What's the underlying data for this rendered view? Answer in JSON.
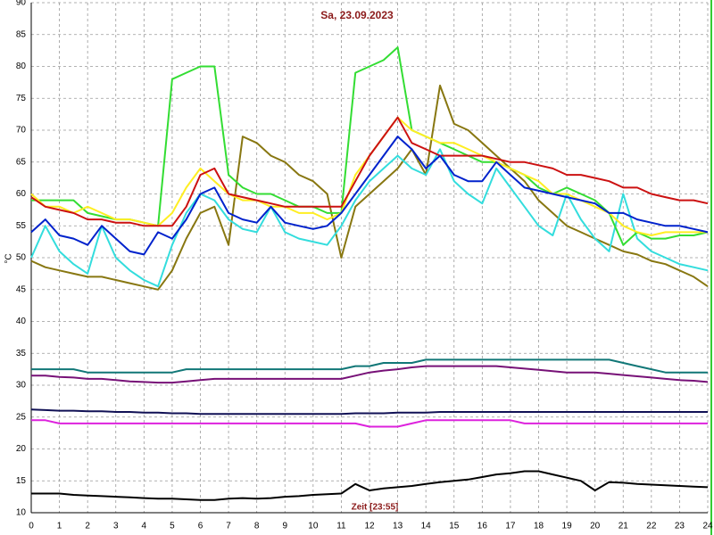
{
  "chart_data": {
    "type": "line",
    "title": "Sa, 23.09.2023",
    "x_label": "Zeit [23:55]",
    "y_label": "°C",
    "x": [
      0,
      0.5,
      1,
      1.5,
      2,
      2.5,
      3,
      3.5,
      4,
      4.5,
      5,
      5.5,
      6,
      6.5,
      7,
      7.5,
      8,
      8.5,
      9,
      9.5,
      10,
      10.5,
      11,
      11.5,
      12,
      12.5,
      13,
      13.5,
      14,
      14.5,
      15,
      15.5,
      16,
      16.5,
      17,
      17.5,
      18,
      18.5,
      19,
      19.5,
      20,
      20.5,
      21,
      21.5,
      22,
      22.5,
      23,
      23.5,
      24
    ],
    "xlim": [
      0,
      24
    ],
    "ylim": [
      10,
      90
    ],
    "xticks": [
      0,
      1,
      2,
      3,
      4,
      5,
      6,
      7,
      8,
      9,
      10,
      11,
      12,
      13,
      14,
      15,
      16,
      17,
      18,
      19,
      20,
      21,
      22,
      23,
      24
    ],
    "yticks": [
      10,
      15,
      20,
      25,
      30,
      35,
      40,
      45,
      50,
      55,
      60,
      65,
      70,
      75,
      80,
      85,
      90
    ],
    "grid": true,
    "series": [
      {
        "color": "#000000",
        "values": [
          13,
          13,
          13,
          12.8,
          12.7,
          12.6,
          12.5,
          12.4,
          12.3,
          12.2,
          12.2,
          12.1,
          12,
          12,
          12.2,
          12.3,
          12.2,
          12.3,
          12.5,
          12.6,
          12.8,
          12.9,
          13,
          14.5,
          13.5,
          13.8,
          14,
          14.2,
          14.5,
          14.8,
          15,
          15.2,
          15.6,
          16,
          16.2,
          16.5,
          16.5,
          16,
          15.5,
          15,
          13.5,
          14.8,
          14.7,
          14.5,
          14.4,
          14.3,
          14.2,
          14.1,
          14
        ]
      },
      {
        "color": "#dd22dd",
        "values": [
          24.5,
          24.5,
          24,
          24,
          24,
          24,
          24,
          24,
          24,
          24,
          24,
          24,
          24,
          24,
          24,
          24,
          24,
          24,
          24,
          24,
          24,
          24,
          24,
          24,
          23.5,
          23.5,
          23.5,
          24,
          24.5,
          24.5,
          24.5,
          24.5,
          24.5,
          24.5,
          24.5,
          24,
          24,
          24,
          24,
          24,
          24,
          24,
          24,
          24,
          24,
          24,
          24,
          24,
          24
        ]
      },
      {
        "color": "#111155",
        "values": [
          26.2,
          26.1,
          26,
          26,
          25.9,
          25.9,
          25.8,
          25.8,
          25.7,
          25.7,
          25.6,
          25.6,
          25.5,
          25.5,
          25.5,
          25.5,
          25.5,
          25.5,
          25.5,
          25.5,
          25.5,
          25.5,
          25.5,
          25.6,
          25.6,
          25.6,
          25.7,
          25.7,
          25.7,
          25.8,
          25.8,
          25.8,
          25.8,
          25.8,
          25.8,
          25.8,
          25.8,
          25.8,
          25.8,
          25.8,
          25.8,
          25.8,
          25.8,
          25.8,
          25.8,
          25.8,
          25.8,
          25.8,
          25.8
        ]
      },
      {
        "color": "#771177",
        "values": [
          31.5,
          31.5,
          31.3,
          31.2,
          31,
          31,
          30.8,
          30.6,
          30.5,
          30.4,
          30.4,
          30.6,
          30.8,
          31,
          31,
          31,
          31,
          31,
          31,
          31,
          31,
          31,
          31,
          31.5,
          32,
          32.3,
          32.5,
          32.8,
          33,
          33,
          33,
          33,
          33,
          33,
          32.8,
          32.6,
          32.4,
          32.2,
          32,
          32,
          32,
          31.8,
          31.6,
          31.4,
          31.2,
          31,
          30.8,
          30.7,
          30.5
        ]
      },
      {
        "color": "#117777",
        "values": [
          32.5,
          32.5,
          32.5,
          32.5,
          32,
          32,
          32,
          32,
          32,
          32,
          32,
          32.5,
          32.5,
          32.5,
          32.5,
          32.5,
          32.5,
          32.5,
          32.5,
          32.5,
          32.5,
          32.5,
          32.5,
          33,
          33,
          33.5,
          33.5,
          33.5,
          34,
          34,
          34,
          34,
          34,
          34,
          34,
          34,
          34,
          34,
          34,
          34,
          34,
          34,
          33.5,
          33,
          32.5,
          32,
          32,
          32,
          32
        ]
      },
      {
        "color": "#887711",
        "values": [
          49.5,
          48.5,
          48,
          47.5,
          47,
          47,
          46.5,
          46,
          45.5,
          45,
          48,
          53,
          57,
          58,
          52,
          69,
          68,
          66,
          65,
          63,
          62,
          60,
          50,
          58,
          60,
          62,
          64,
          67,
          63,
          77,
          71,
          70,
          68,
          66,
          64,
          62,
          59,
          57,
          55,
          54,
          53,
          52,
          51,
          50.5,
          49.5,
          49,
          48,
          47,
          45.5
        ]
      },
      {
        "color": "#33dddd",
        "values": [
          50,
          55,
          51,
          49,
          47.5,
          55,
          50,
          48,
          46.5,
          45.5,
          52,
          57,
          60,
          59,
          56,
          54.5,
          54,
          58,
          54,
          53,
          52.5,
          52,
          55,
          59,
          62,
          64,
          66,
          64,
          63,
          67,
          62,
          60,
          58.5,
          64,
          61,
          58,
          55,
          53.5,
          60,
          56,
          53,
          51,
          60,
          53,
          51,
          50,
          49,
          48.5,
          48
        ]
      },
      {
        "color": "#33dd33",
        "values": [
          59,
          59,
          59,
          59,
          57,
          56.5,
          56,
          56,
          55.5,
          55,
          78,
          79,
          80,
          80,
          63,
          61,
          60,
          60,
          59,
          58,
          58,
          57,
          57,
          79,
          80,
          81,
          83,
          70,
          69,
          68,
          67,
          66,
          65,
          65,
          64,
          63,
          61,
          60,
          61,
          60,
          59,
          57,
          52,
          54,
          53,
          53,
          53.5,
          53.5,
          54
        ]
      },
      {
        "color": "#ffee22",
        "values": [
          60,
          58,
          58,
          57,
          58,
          57,
          56,
          56,
          55.5,
          55,
          57,
          61,
          64,
          62,
          60,
          59,
          59,
          58,
          58,
          57,
          57,
          56,
          57,
          63,
          66,
          69,
          72,
          70,
          69,
          68,
          68,
          67,
          66,
          65,
          64,
          63,
          62,
          60,
          60,
          59,
          58,
          57,
          55,
          54,
          53.5,
          54,
          54,
          54,
          54
        ]
      },
      {
        "color": "#cc1111",
        "values": [
          59.5,
          58,
          57.5,
          57,
          56,
          56,
          55.5,
          55.5,
          55,
          55,
          55,
          58,
          63,
          64,
          60,
          59.5,
          59,
          58.5,
          58,
          58,
          58,
          58,
          58,
          62,
          66,
          69,
          72,
          68,
          67,
          66,
          66,
          66,
          66,
          65.5,
          65,
          65,
          64.5,
          64,
          63,
          63,
          62.5,
          62,
          61,
          61,
          60,
          59.5,
          59,
          59,
          58.5
        ]
      },
      {
        "color": "#0022cc",
        "values": [
          54,
          56,
          53.5,
          53,
          52,
          55,
          53,
          51,
          50.5,
          54,
          53,
          56,
          60,
          61,
          57,
          56,
          55.5,
          58,
          55.5,
          55,
          54.5,
          55,
          57,
          60,
          63,
          66,
          69,
          67,
          64,
          66,
          63,
          62,
          62,
          65,
          63,
          61,
          60.5,
          60,
          59.5,
          59,
          58.5,
          57,
          57,
          56,
          55.5,
          55,
          55,
          54.5,
          54
        ]
      }
    ]
  }
}
